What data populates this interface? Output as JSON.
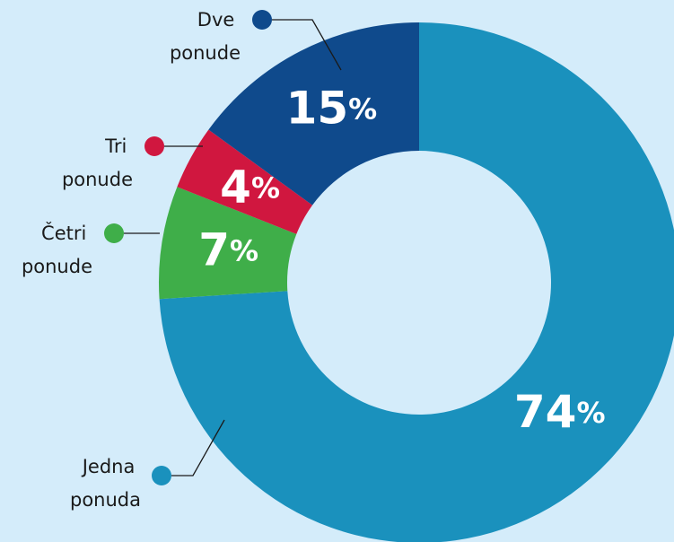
{
  "chart_data": {
    "type": "donut",
    "categories": [
      "Jedna ponuda",
      "Četri ponude",
      "Tri ponude",
      "Dve ponude"
    ],
    "values": [
      74,
      7,
      4,
      15
    ],
    "value_labels": [
      "74%",
      "7%",
      "4%",
      "15%"
    ],
    "colors": [
      "#1a91bd",
      "#3fae49",
      "#d0173f",
      "#0f4a8c"
    ]
  }
}
